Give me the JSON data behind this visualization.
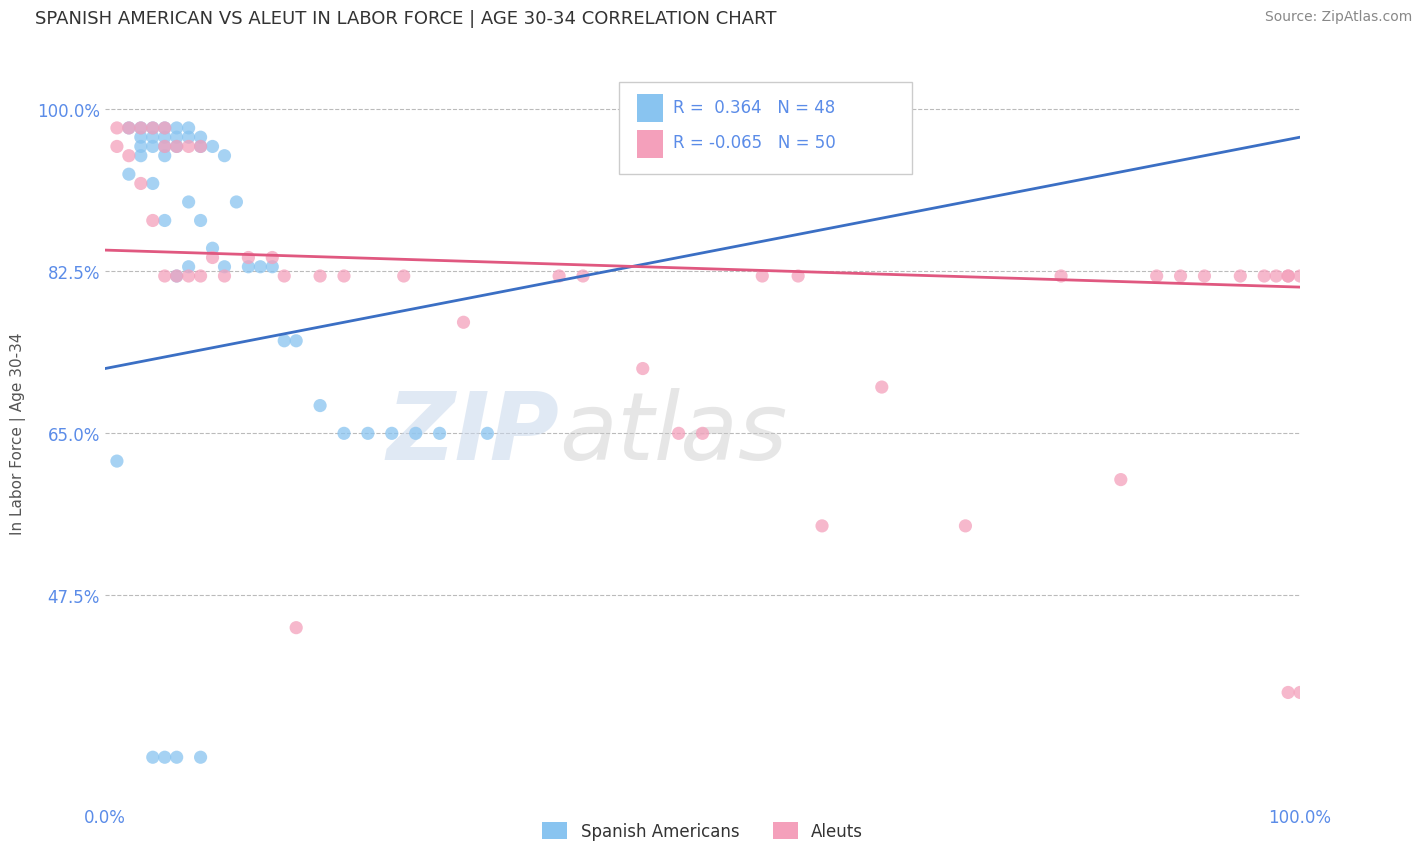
{
  "title": "SPANISH AMERICAN VS ALEUT IN LABOR FORCE | AGE 30-34 CORRELATION CHART",
  "source_text": "Source: ZipAtlas.com",
  "ylabel": "In Labor Force | Age 30-34",
  "xlim": [
    0.0,
    1.0
  ],
  "ylim": [
    0.25,
    1.05
  ],
  "yticks": [
    1.0,
    0.825,
    0.65,
    0.475
  ],
  "ytick_labels": [
    "100.0%",
    "82.5%",
    "65.0%",
    "47.5%"
  ],
  "xtick_labels": [
    "0.0%",
    "100.0%"
  ],
  "xticks": [
    0.0,
    1.0
  ],
  "blue_label": "Spanish Americans",
  "pink_label": "Aleuts",
  "legend_text_blue": "R =  0.364   N = 48",
  "legend_text_pink": "R = -0.065   N = 50",
  "blue_color": "#89C4F0",
  "pink_color": "#F4A0BB",
  "blue_line_color": "#3B6FC4",
  "pink_line_color": "#E05880",
  "watermark_zip": "ZIP",
  "watermark_atlas": "atlas",
  "title_fontsize": 13,
  "axis_label_color": "#555555",
  "tick_label_color": "#5B8CE8",
  "background_color": "#FFFFFF",
  "grid_color": "#BBBBBB",
  "blue_x": [
    0.01,
    0.02,
    0.02,
    0.03,
    0.03,
    0.03,
    0.03,
    0.04,
    0.04,
    0.04,
    0.04,
    0.05,
    0.05,
    0.05,
    0.05,
    0.05,
    0.06,
    0.06,
    0.06,
    0.06,
    0.07,
    0.07,
    0.07,
    0.07,
    0.08,
    0.08,
    0.08,
    0.09,
    0.09,
    0.1,
    0.1,
    0.11,
    0.12,
    0.13,
    0.14,
    0.15,
    0.16,
    0.18,
    0.2,
    0.22,
    0.24,
    0.26,
    0.28,
    0.32,
    0.04,
    0.05,
    0.06,
    0.08
  ],
  "blue_y": [
    0.62,
    0.98,
    0.93,
    0.98,
    0.97,
    0.96,
    0.95,
    0.98,
    0.97,
    0.96,
    0.92,
    0.98,
    0.97,
    0.96,
    0.95,
    0.88,
    0.98,
    0.97,
    0.96,
    0.82,
    0.98,
    0.97,
    0.9,
    0.83,
    0.97,
    0.96,
    0.88,
    0.96,
    0.85,
    0.95,
    0.83,
    0.9,
    0.83,
    0.83,
    0.83,
    0.75,
    0.75,
    0.68,
    0.65,
    0.65,
    0.65,
    0.65,
    0.65,
    0.65,
    0.3,
    0.3,
    0.3,
    0.3
  ],
  "pink_x": [
    0.01,
    0.01,
    0.02,
    0.02,
    0.03,
    0.03,
    0.04,
    0.04,
    0.05,
    0.05,
    0.05,
    0.06,
    0.06,
    0.07,
    0.07,
    0.08,
    0.08,
    0.09,
    0.1,
    0.12,
    0.14,
    0.15,
    0.16,
    0.18,
    0.2,
    0.25,
    0.3,
    0.38,
    0.4,
    0.45,
    0.48,
    0.5,
    0.55,
    0.58,
    0.6,
    0.65,
    0.72,
    0.8,
    0.85,
    0.88,
    0.9,
    0.92,
    0.95,
    0.97,
    0.98,
    0.99,
    0.99,
    0.99,
    1.0,
    1.0
  ],
  "pink_y": [
    0.98,
    0.96,
    0.98,
    0.95,
    0.98,
    0.92,
    0.98,
    0.88,
    0.98,
    0.96,
    0.82,
    0.96,
    0.82,
    0.96,
    0.82,
    0.96,
    0.82,
    0.84,
    0.82,
    0.84,
    0.84,
    0.82,
    0.44,
    0.82,
    0.82,
    0.82,
    0.77,
    0.82,
    0.82,
    0.72,
    0.65,
    0.65,
    0.82,
    0.82,
    0.55,
    0.7,
    0.55,
    0.82,
    0.6,
    0.82,
    0.82,
    0.82,
    0.82,
    0.82,
    0.82,
    0.37,
    0.82,
    0.82,
    0.37,
    0.82
  ],
  "blue_trend_x": [
    0.0,
    1.0
  ],
  "blue_trend_y": [
    0.72,
    0.97
  ],
  "pink_trend_x": [
    0.0,
    1.0
  ],
  "pink_trend_y": [
    0.848,
    0.808
  ]
}
